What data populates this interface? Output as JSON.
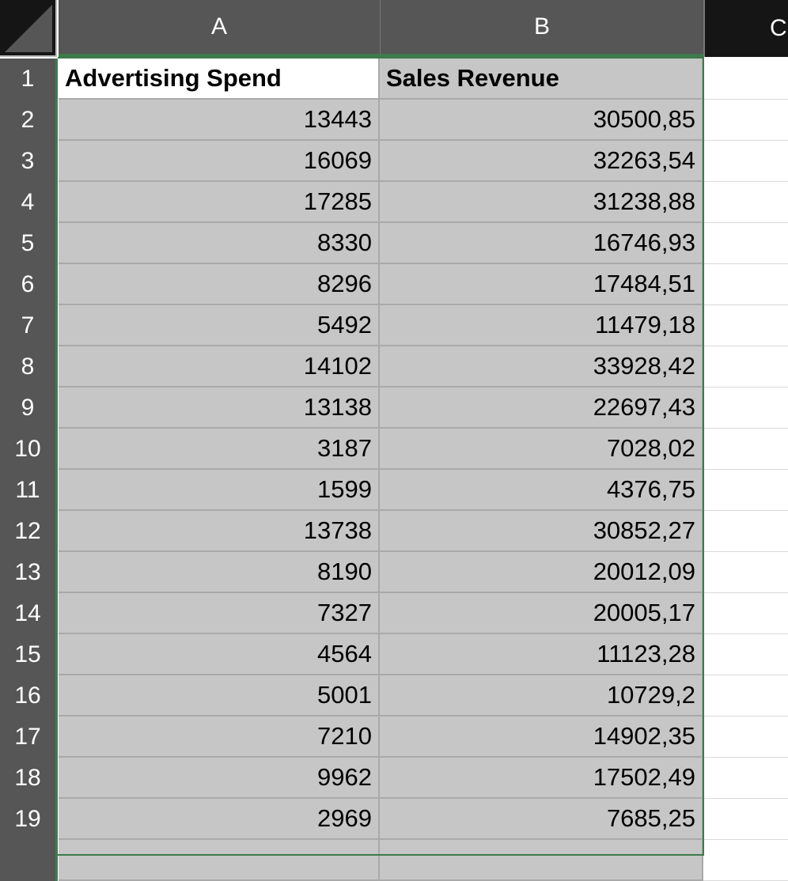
{
  "columns": [
    "A",
    "B",
    "C"
  ],
  "headers": [
    "Advertising Spend",
    "Sales Revenue"
  ],
  "rows": [
    {
      "row": "1"
    },
    {
      "row": "2",
      "a": "13443",
      "b": "30500,85"
    },
    {
      "row": "3",
      "a": "16069",
      "b": "32263,54"
    },
    {
      "row": "4",
      "a": "17285",
      "b": "31238,88"
    },
    {
      "row": "5",
      "a": "8330",
      "b": "16746,93"
    },
    {
      "row": "6",
      "a": "8296",
      "b": "17484,51"
    },
    {
      "row": "7",
      "a": "5492",
      "b": "11479,18"
    },
    {
      "row": "8",
      "a": "14102",
      "b": "33928,42"
    },
    {
      "row": "9",
      "a": "13138",
      "b": "22697,43"
    },
    {
      "row": "10",
      "a": "3187",
      "b": "7028,02"
    },
    {
      "row": "11",
      "a": "1599",
      "b": "4376,75"
    },
    {
      "row": "12",
      "a": "13738",
      "b": "30852,27"
    },
    {
      "row": "13",
      "a": "8190",
      "b": "20012,09"
    },
    {
      "row": "14",
      "a": "7327",
      "b": "20005,17"
    },
    {
      "row": "15",
      "a": "4564",
      "b": "11123,28"
    },
    {
      "row": "16",
      "a": "5001",
      "b": "10729,2"
    },
    {
      "row": "17",
      "a": "7210",
      "b": "14902,35"
    },
    {
      "row": "18",
      "a": "9962",
      "b": "17502,49"
    },
    {
      "row": "19",
      "a": "2969",
      "b": "7685,25"
    }
  ],
  "colors": {
    "header_bg": "#565656",
    "selection_fill": "#c6c6c6",
    "selection_border": "#3e7a4c"
  }
}
